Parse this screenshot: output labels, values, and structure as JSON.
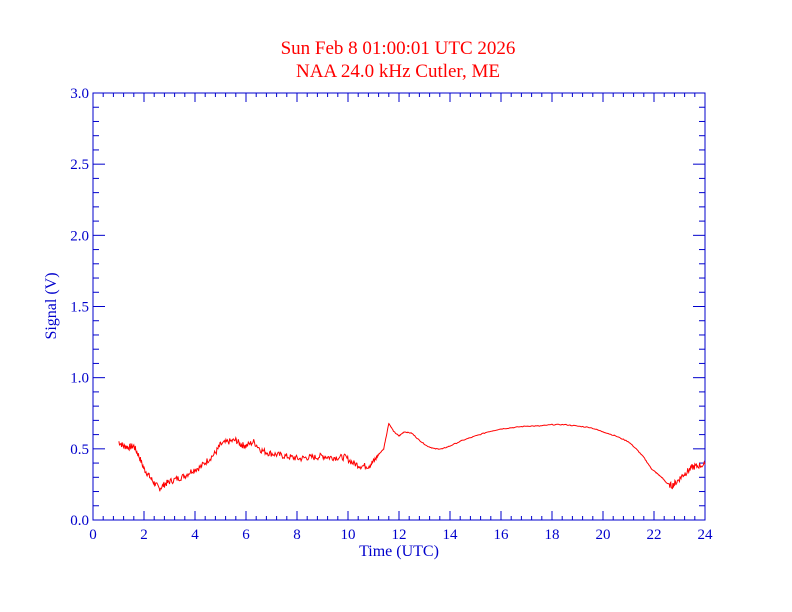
{
  "chart_data": {
    "type": "line",
    "title": "Sun Feb 8 01:00:01 UTC 2026",
    "subtitle": "NAA 24.0 kHz Cutler, ME",
    "xlabel": "Time (UTC)",
    "ylabel": "Signal (V)",
    "xlim": [
      0,
      24
    ],
    "ylim": [
      0,
      3.0
    ],
    "x_ticks": [
      0,
      2,
      4,
      6,
      8,
      10,
      12,
      14,
      16,
      18,
      20,
      22,
      24
    ],
    "y_ticks": [
      "0.0",
      "0.5",
      "1.0",
      "1.5",
      "2.0",
      "2.5",
      "3.0"
    ],
    "grid": false,
    "colors": {
      "axis": "#0000cc",
      "title": "#ff0000",
      "series": "#ff0000"
    },
    "series": [
      {
        "x": [
          1.0,
          1.2,
          1.4,
          1.6,
          1.8,
          2.0,
          2.2,
          2.4,
          2.6,
          2.8,
          3.0,
          3.3,
          3.6,
          3.9,
          4.2,
          4.5,
          4.8,
          5.0,
          5.3,
          5.6,
          5.8,
          6.0,
          6.3,
          6.6,
          6.9,
          7.2,
          7.5,
          7.8,
          8.1,
          8.4,
          8.7,
          9.0,
          9.3,
          9.6,
          9.9,
          10.2,
          10.5,
          10.8,
          11.0,
          11.2,
          11.4,
          11.6,
          11.8,
          12.0,
          12.2,
          12.5,
          12.8,
          13.1,
          13.4,
          13.7,
          14.0,
          14.5,
          15.0,
          15.5,
          16.0,
          16.5,
          17.0,
          17.5,
          18.0,
          18.5,
          19.0,
          19.5,
          20.0,
          20.5,
          21.0,
          21.3,
          21.6,
          21.9,
          22.1,
          22.3,
          22.5,
          22.7,
          22.9,
          23.1,
          23.3,
          23.5,
          23.7,
          24.0
        ],
        "y": [
          0.55,
          0.52,
          0.51,
          0.52,
          0.45,
          0.36,
          0.31,
          0.26,
          0.22,
          0.25,
          0.27,
          0.29,
          0.31,
          0.35,
          0.37,
          0.42,
          0.47,
          0.53,
          0.55,
          0.56,
          0.53,
          0.52,
          0.55,
          0.49,
          0.47,
          0.46,
          0.45,
          0.44,
          0.43,
          0.44,
          0.44,
          0.45,
          0.44,
          0.44,
          0.44,
          0.4,
          0.38,
          0.38,
          0.41,
          0.46,
          0.5,
          0.68,
          0.62,
          0.59,
          0.62,
          0.61,
          0.56,
          0.52,
          0.5,
          0.5,
          0.52,
          0.56,
          0.59,
          0.62,
          0.64,
          0.65,
          0.66,
          0.66,
          0.67,
          0.67,
          0.66,
          0.65,
          0.62,
          0.59,
          0.55,
          0.5,
          0.44,
          0.36,
          0.33,
          0.3,
          0.26,
          0.24,
          0.27,
          0.31,
          0.34,
          0.37,
          0.38,
          0.39
        ]
      }
    ]
  }
}
